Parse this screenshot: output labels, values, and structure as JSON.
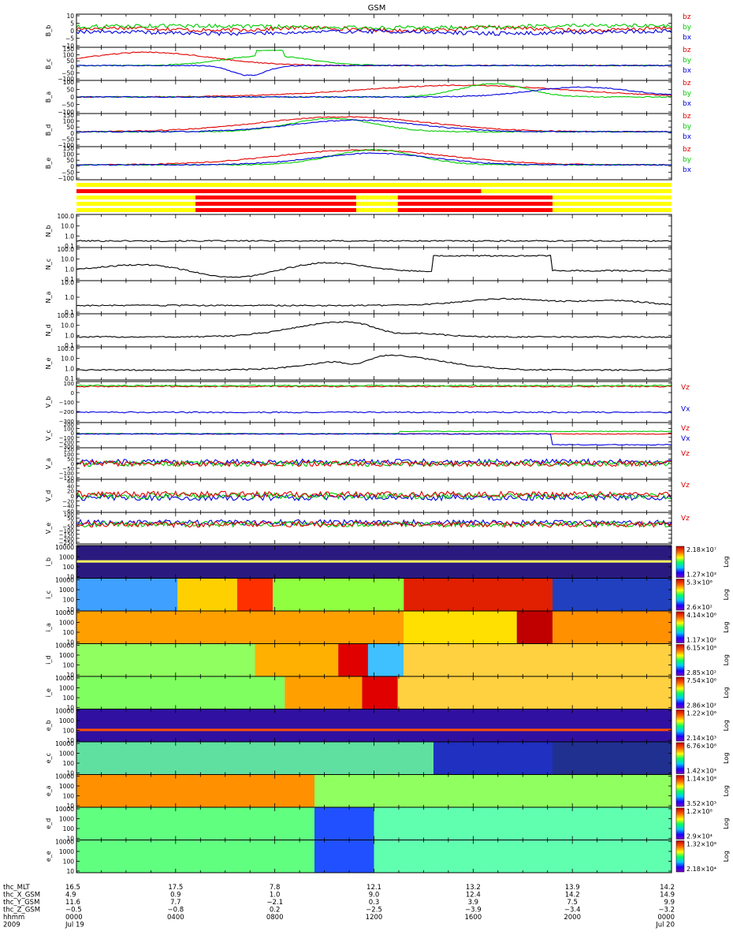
{
  "chart_data": {
    "type": "line",
    "title": "GSM",
    "time_axis": {
      "rows": [
        {
          "label": "thc_MLT",
          "values": [
            "16.5",
            "17.5",
            "7.8",
            "12.1",
            "13.2",
            "13.9",
            "14.2"
          ]
        },
        {
          "label": "thc_X_GSM",
          "values": [
            "4.9",
            "0.9",
            "1.0",
            "9.0",
            "12.4",
            "14.2",
            "14.9"
          ]
        },
        {
          "label": "thc_Y_GSM",
          "values": [
            "11.6",
            "7.7",
            "−2.1",
            "0.3",
            "3.9",
            "7.5",
            "9.9"
          ]
        },
        {
          "label": "thc_Z_GSM",
          "values": [
            "−0.5",
            "−0.8",
            "0.2",
            "−2.5",
            "−3.9",
            "−3.4",
            "−3.2"
          ]
        },
        {
          "label": "hhmm",
          "values": [
            "0000",
            "0400",
            "0800",
            "1200",
            "1600",
            "2000",
            "0000"
          ]
        },
        {
          "label": "2009",
          "values": [
            "Jul 19",
            "",
            "",
            "",
            "",
            "",
            "Jul 20"
          ]
        }
      ]
    },
    "field_panels": [
      {
        "ylabel": "B_b",
        "yticks": [
          "10",
          "5",
          "0",
          "−5",
          "−10"
        ],
        "legend": [
          "bz",
          "by",
          "bx"
        ]
      },
      {
        "ylabel": "B_c",
        "yticks": [
          "150",
          "100",
          "50",
          "0",
          "−50",
          "−100"
        ],
        "legend": [
          "bz",
          "by",
          "bx"
        ]
      },
      {
        "ylabel": "B_a",
        "yticks": [
          "100",
          "50",
          "0",
          "−50",
          "−100"
        ],
        "legend": [
          "bz",
          "by",
          "bx"
        ]
      },
      {
        "ylabel": "B_d",
        "yticks": [
          "150",
          "100",
          "50",
          "0",
          "−50",
          "−100"
        ],
        "legend": [
          "bz",
          "by",
          "bx"
        ]
      },
      {
        "ylabel": "B_e",
        "yticks": [
          "150",
          "100",
          "50",
          "0",
          "−50",
          "−100"
        ],
        "legend": [
          "bz",
          "by",
          "bx"
        ]
      }
    ],
    "density_panels": [
      {
        "ylabel": "N_b",
        "yticks": [
          "100.0",
          "10.0",
          "1.0",
          "0.1"
        ]
      },
      {
        "ylabel": "N_c",
        "yticks": [
          "100.0",
          "10.0",
          "1.0",
          "0.1"
        ]
      },
      {
        "ylabel": "N_a",
        "yticks": [
          "10.0",
          "1.0",
          "0.1"
        ]
      },
      {
        "ylabel": "N_d",
        "yticks": [
          "100.0",
          "10.0",
          "1.0",
          "0.1"
        ]
      },
      {
        "ylabel": "N_e",
        "yticks": [
          "100.0",
          "10.0",
          "1.0",
          "0.1"
        ]
      }
    ],
    "velocity_panels": [
      {
        "ylabel": "V_b",
        "yticks": [
          "100",
          "0",
          "−100",
          "−200",
          "−300"
        ],
        "legend": [
          "Vz",
          "Vx"
        ]
      },
      {
        "ylabel": "V_c",
        "yticks": [
          "200",
          "100",
          "0",
          "−100",
          "−200",
          "−300"
        ],
        "legend": [
          "Vz",
          "Vx"
        ]
      },
      {
        "ylabel": "V_a",
        "yticks": [
          "150",
          "100",
          "50",
          "0",
          "−50",
          "−100",
          "−150"
        ],
        "legend": [
          "Vz"
        ]
      },
      {
        "ylabel": "V_d",
        "yticks": [
          "60",
          "40",
          "20",
          "0",
          "−20",
          "−40",
          "−60"
        ],
        "legend": [
          "Vz"
        ]
      },
      {
        "ylabel": "V_e",
        "yticks": [
          "100",
          "50",
          "0",
          "−50",
          "−100",
          "−150",
          "−200",
          "−250"
        ],
        "legend": [
          "Vz"
        ]
      }
    ],
    "spectrogram_panels": [
      {
        "ylabel": "i_b",
        "yticks": [
          "10000",
          "1000",
          "100",
          "10"
        ],
        "cb_top": "2.18×10⁷",
        "cb_bot": "1.27×10³"
      },
      {
        "ylabel": "i_c",
        "yticks": [
          "10000",
          "1000",
          "100",
          "10"
        ],
        "cb_top": "5.3×10⁶",
        "cb_bot": "2.6×10²"
      },
      {
        "ylabel": "i_a",
        "yticks": [
          "10000",
          "1000",
          "100",
          "10"
        ],
        "cb_top": "4.14×10⁶",
        "cb_bot": "1.17×10²"
      },
      {
        "ylabel": "i_d",
        "yticks": [
          "10000",
          "1000",
          "100",
          "10"
        ],
        "cb_top": "6.15×10⁶",
        "cb_bot": "2.85×10²"
      },
      {
        "ylabel": "i_e",
        "yticks": [
          "10000",
          "1000",
          "100",
          "10"
        ],
        "cb_top": "7.54×10⁶",
        "cb_bot": "2.86×10²"
      },
      {
        "ylabel": "e_b",
        "yticks": [
          "10000",
          "1000",
          "100",
          "10"
        ],
        "cb_top": "1.22×10⁶",
        "cb_bot": "2.14×10³"
      },
      {
        "ylabel": "e_c",
        "yticks": [
          "10000",
          "1000",
          "100",
          "10"
        ],
        "cb_top": "6.76×10⁸",
        "cb_bot": "1.42×10³"
      },
      {
        "ylabel": "e_a",
        "yticks": [
          "10000",
          "1000",
          "100",
          "10"
        ],
        "cb_top": "1.14×10⁸",
        "cb_bot": "3.52×10³"
      },
      {
        "ylabel": "e_d",
        "yticks": [
          "10000",
          "1000",
          "100",
          "10"
        ],
        "cb_top": "1.2×10⁸",
        "cb_bot": "2.9×10⁴"
      },
      {
        "ylabel": "e_e",
        "yticks": [
          "10000",
          "1000",
          "100",
          "10"
        ],
        "cb_top": "1.32×10⁸",
        "cb_bot": "2.18×10⁴"
      }
    ],
    "colorbar_label": "Log",
    "series_colors": {
      "bz": "#e00000",
      "by": "#00cc00",
      "bx": "#0000dd",
      "Vz": "#e00000",
      "Vx": "#0000dd"
    }
  }
}
